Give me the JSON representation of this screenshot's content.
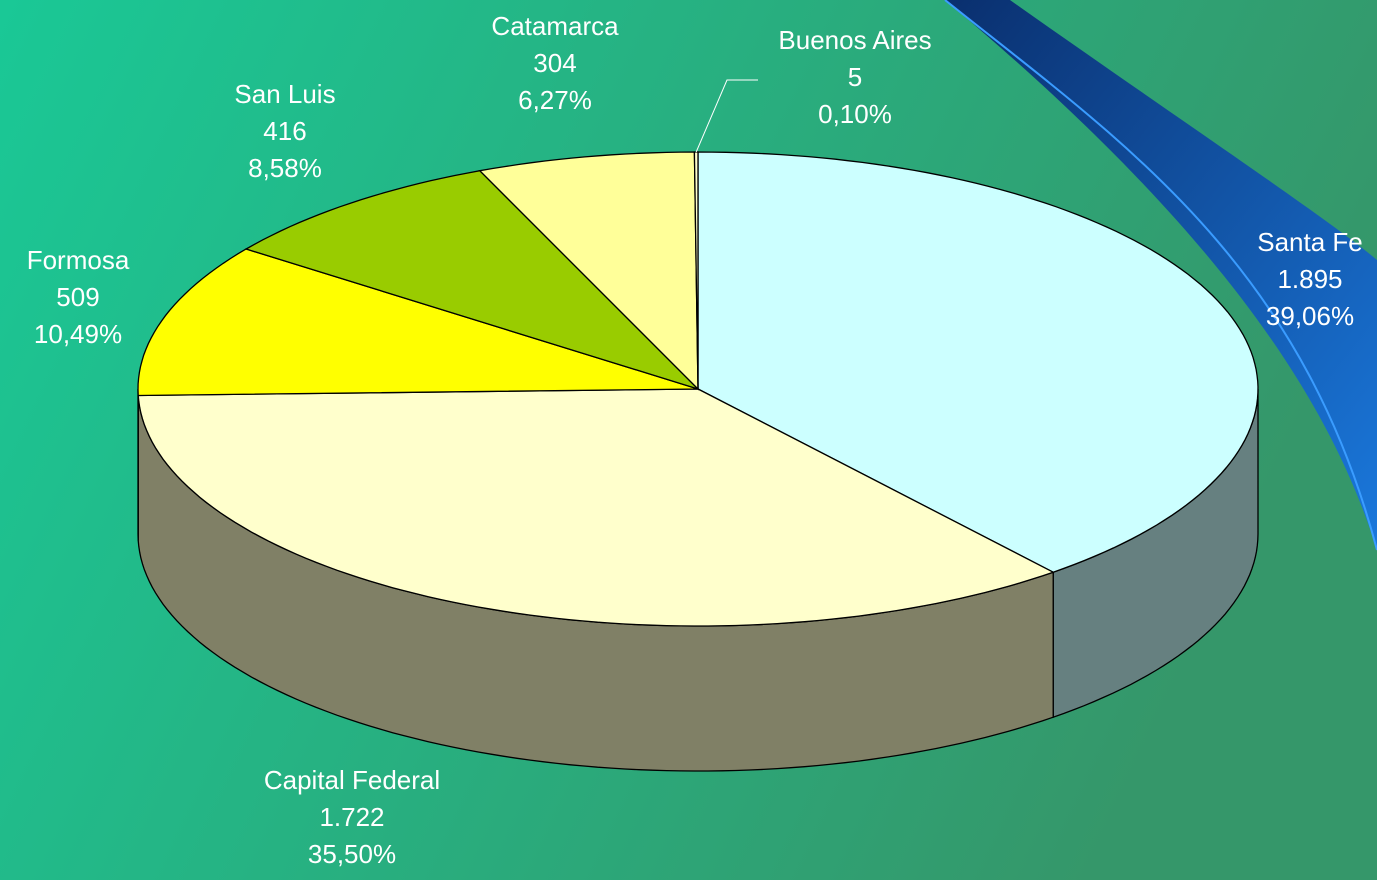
{
  "chart_data": {
    "type": "pie3d",
    "categories": [
      "Santa Fe",
      "Capital Federal",
      "Formosa",
      "San Luis",
      "Catamarca",
      "Buenos Aires"
    ],
    "values": [
      1895,
      1722,
      509,
      416,
      304,
      5
    ],
    "value_labels": [
      "1.895",
      "1.722",
      "509",
      "416",
      "304",
      "5"
    ],
    "percent_labels": [
      "39,06%",
      "35,50%",
      "10,49%",
      "8,58%",
      "6,27%",
      "0,10%"
    ],
    "colors": [
      "#ccffff",
      "#ffffcc",
      "#ffff00",
      "#99cc00",
      "#ffff99",
      "#ffffcc"
    ]
  }
}
